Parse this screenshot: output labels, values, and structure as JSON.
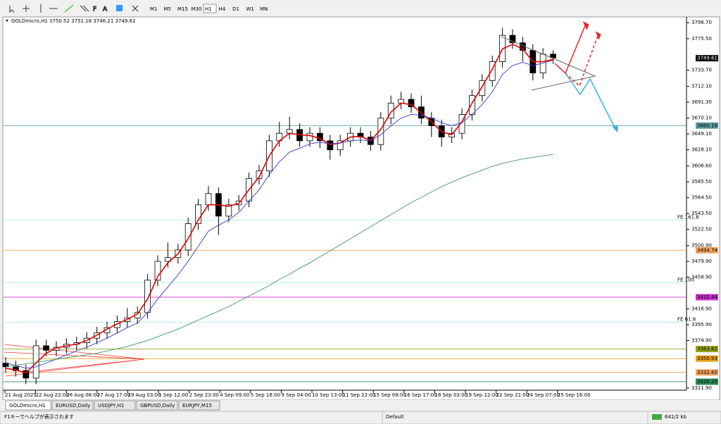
{
  "toolbar": {
    "timeframes": [
      "M1",
      "M5",
      "M15",
      "M30",
      "H1",
      "H4",
      "D1",
      "W1",
      "MN"
    ]
  },
  "chart_data": {
    "type": "candlestick",
    "header": "GOLDmicro,H1  3750.52 3751.18 3746.21 3749.61",
    "current_price": {
      "value": 3749.61,
      "label": "3749.61"
    },
    "ylim": [
      3309.0,
      3804.4
    ],
    "yticks": [
      {
        "value": 3796.7,
        "label": "3796.70"
      },
      {
        "value": 3775.5,
        "label": "3775.50"
      },
      {
        "value": 3733.7,
        "label": "3733.70"
      },
      {
        "value": 3712.1,
        "label": "3712.10"
      },
      {
        "value": 3691.3,
        "label": "3691.30"
      },
      {
        "value": 3670.1,
        "label": "3670.10"
      },
      {
        "value": 3649.1,
        "label": "3649.10"
      },
      {
        "value": 3628.1,
        "label": "3628.10"
      },
      {
        "value": 3606.6,
        "label": "3606.60"
      },
      {
        "value": 3585.5,
        "label": "3585.50"
      },
      {
        "value": 3564.5,
        "label": "3564.50"
      },
      {
        "value": 3543.5,
        "label": "3543.50"
      },
      {
        "value": 3522.5,
        "label": "3522.50"
      },
      {
        "value": 3500.9,
        "label": "3500.90"
      },
      {
        "value": 3479.9,
        "label": "3479.90"
      },
      {
        "value": 3458.9,
        "label": "3458.90"
      },
      {
        "value": 3416.9,
        "label": "3416.90"
      },
      {
        "value": 3395.9,
        "label": "3395.90"
      },
      {
        "value": 3374.9,
        "label": "3374.90"
      },
      {
        "value": 3311.9,
        "label": "3311.90"
      }
    ],
    "xticks": [
      "21 Aug 2025",
      "22 Aug 22:00",
      "26 Aug 08:00",
      "27 Aug 17:00",
      "29 Aug 03:00",
      "1 Sep 12:00",
      "2 Sep 23:00",
      "4 Sep 09:00",
      "5 Sep 18:00",
      "9 Sep 04:00",
      "10 Sep 13:00",
      "11 Sep 22:00",
      "15 Sep 08:00",
      "16 Sep 17:00",
      "18 Sep 03:00",
      "19 Sep 12:00",
      "22 Sep 21:00",
      "24 Sep 07:00",
      "25 Sep 16:00"
    ],
    "hlines": [
      {
        "value": 3660.19,
        "label": "3660.19",
        "color": "#5f9ea0",
        "tag": true
      },
      {
        "value": 3534.7,
        "label": "FE 161.8",
        "color": "#aeeeee",
        "tag": false
      },
      {
        "value": 3494.74,
        "label": "3494.74",
        "color": "#f4a460",
        "tag": true
      },
      {
        "value": 3451.6,
        "label": "FE 100",
        "color": "#aeeeee",
        "tag": false
      },
      {
        "value": 3432.44,
        "label": "3432.44",
        "color": "#cc33cc",
        "tag": true
      },
      {
        "value": 3399.0,
        "label": "FE 61.8",
        "color": "#aeeeee",
        "tag": false
      },
      {
        "value": 3363.62,
        "label": "3363.62",
        "color": "#9aa520",
        "tag": true
      },
      {
        "value": 3350.93,
        "label": "3350.93",
        "color": "#e8a317",
        "tag": true
      },
      {
        "value": 3332.6,
        "label": "3332.60",
        "color": "#f4a460",
        "tag": true
      },
      {
        "value": 3320.25,
        "label": "3320.25",
        "color": "#2e8b57",
        "tag": true
      }
    ],
    "candles": {
      "up_color": "#000000",
      "down_color": "#000000",
      "open": [
        3345,
        3340,
        3335,
        3325,
        3368,
        3362,
        3366,
        3370,
        3372,
        3378,
        3385,
        3392,
        3400,
        3405,
        3412,
        3455,
        3480,
        3485,
        3495,
        3530,
        3555,
        3570,
        3540,
        3555,
        3560,
        3590,
        3600,
        3640,
        3650,
        3655,
        3640,
        3650,
        3640,
        3628,
        3640,
        3650,
        3645,
        3635,
        3670,
        3690,
        3695,
        3685,
        3670,
        3660,
        3645,
        3650,
        3675,
        3700,
        3720,
        3745,
        3780,
        3770,
        3760,
        3730,
        3755
      ],
      "high": [
        3353,
        3348,
        3343,
        3376,
        3376,
        3374,
        3378,
        3380,
        3386,
        3393,
        3400,
        3408,
        3418,
        3420,
        3463,
        3488,
        3505,
        3503,
        3538,
        3563,
        3580,
        3578,
        3563,
        3568,
        3598,
        3608,
        3648,
        3665,
        3672,
        3663,
        3658,
        3658,
        3648,
        3648,
        3658,
        3658,
        3653,
        3678,
        3700,
        3705,
        3703,
        3700,
        3678,
        3668,
        3658,
        3683,
        3708,
        3728,
        3753,
        3790,
        3788,
        3778,
        3768,
        3763,
        3760
      ],
      "low": [
        3332,
        3327,
        3317,
        3317,
        3354,
        3354,
        3358,
        3362,
        3364,
        3370,
        3377,
        3384,
        3392,
        3397,
        3404,
        3447,
        3472,
        3477,
        3487,
        3522,
        3547,
        3515,
        3532,
        3547,
        3552,
        3582,
        3592,
        3632,
        3642,
        3632,
        3632,
        3630,
        3615,
        3620,
        3632,
        3637,
        3627,
        3627,
        3662,
        3682,
        3677,
        3662,
        3645,
        3632,
        3637,
        3642,
        3667,
        3692,
        3712,
        3737,
        3762,
        3745,
        3720,
        3722,
        3742
      ],
      "close": [
        3340,
        3335,
        3325,
        3368,
        3362,
        3366,
        3370,
        3372,
        3378,
        3385,
        3392,
        3400,
        3405,
        3412,
        3455,
        3480,
        3485,
        3495,
        3530,
        3555,
        3570,
        3540,
        3555,
        3560,
        3590,
        3600,
        3640,
        3650,
        3655,
        3640,
        3650,
        3640,
        3628,
        3640,
        3650,
        3645,
        3635,
        3670,
        3690,
        3695,
        3685,
        3670,
        3660,
        3645,
        3650,
        3675,
        3700,
        3720,
        3745,
        3780,
        3770,
        3760,
        3730,
        3755,
        3750
      ]
    },
    "series": [
      {
        "color": "#e00000",
        "values": [
          3338,
          3336,
          3332,
          3345,
          3358,
          3365,
          3368,
          3370,
          3375,
          3382,
          3390,
          3397,
          3403,
          3410,
          3430,
          3460,
          3478,
          3490,
          3510,
          3535,
          3555,
          3555,
          3553,
          3557,
          3575,
          3592,
          3620,
          3640,
          3650,
          3648,
          3647,
          3643,
          3635,
          3637,
          3645,
          3646,
          3640,
          3655,
          3678,
          3690,
          3688,
          3677,
          3665,
          3652,
          3648,
          3665,
          3690,
          3712,
          3735,
          3762,
          3768,
          3762,
          3745,
          3745,
          3748
        ]
      },
      {
        "color": "#3a3acc",
        "values": [
          3345,
          3342,
          3338,
          3340,
          3345,
          3350,
          3356,
          3361,
          3366,
          3372,
          3378,
          3385,
          3392,
          3398,
          3412,
          3430,
          3446,
          3462,
          3480,
          3500,
          3520,
          3528,
          3535,
          3545,
          3560,
          3575,
          3595,
          3612,
          3625,
          3630,
          3636,
          3638,
          3636,
          3637,
          3640,
          3641,
          3640,
          3648,
          3660,
          3670,
          3675,
          3674,
          3670,
          3664,
          3660,
          3664,
          3675,
          3688,
          3705,
          3728,
          3740,
          3744,
          3740,
          3743,
          3747
        ]
      },
      {
        "color": "#3c9a5c",
        "values": [
          3340,
          3342,
          3344,
          3346,
          3348,
          3350,
          3352,
          3354,
          3356,
          3358,
          3361,
          3364,
          3367,
          3371,
          3375,
          3380,
          3385,
          3390,
          3396,
          3402,
          3408,
          3414,
          3420,
          3427,
          3434,
          3441,
          3448,
          3456,
          3463,
          3471,
          3478,
          3486,
          3494,
          3502,
          3510,
          3518,
          3526,
          3534,
          3542,
          3550,
          3558,
          3565,
          3572,
          3579,
          3585,
          3591,
          3596,
          3601,
          3606,
          3610,
          3613,
          3616,
          3618,
          3620,
          3622
        ]
      }
    ]
  },
  "tabs": [
    "GOLDmicro,H1",
    "EURUSD,Daily",
    "USDJPY,H1",
    "GBPUSD,Daily",
    "EURJPY,M15"
  ],
  "status": {
    "help": "F1キーでヘルプが表示されます",
    "profile": "Default",
    "traffic": "641/2 kb"
  }
}
